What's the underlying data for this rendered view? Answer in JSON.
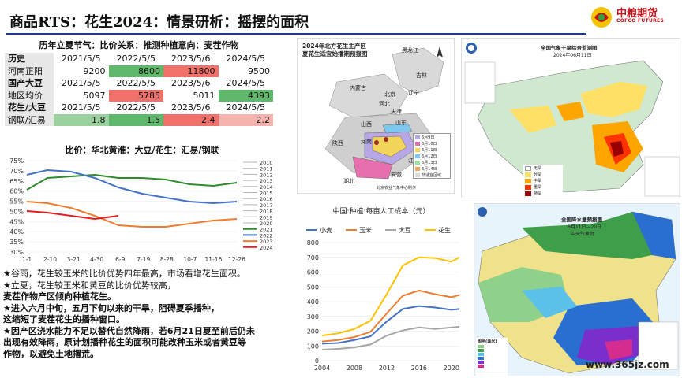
{
  "header": {
    "title": "商品RTS：花生2024：情景研析：摇摆的面积",
    "logo_cn": "中粮期货",
    "logo_en": "COFCO FUTURES"
  },
  "table": {
    "title": "历年立夏节气：比价关系：推测种植意向：麦茬作物",
    "groups": [
      {
        "header": "历史",
        "years": [
          "2021/5/5",
          "2022/5/5",
          "2023/5/6",
          "2024/5/5"
        ],
        "row_label": "河南正阳",
        "values": [
          "9200",
          "8600",
          "11800",
          "9500"
        ]
      },
      {
        "header": "国产大豆",
        "years": [
          "2021/5/5",
          "2022/5/5",
          "2023/5/6",
          "2024/5/5"
        ],
        "row_label": "地区均价",
        "values": [
          "5097",
          "5785",
          "5011",
          "4393"
        ]
      },
      {
        "header": "花生/大豆",
        "years": [
          "2021/5/5",
          "2022/5/5",
          "2023/5/6",
          "2024/5/5"
        ],
        "row_label": "钢联/汇易",
        "values": [
          "1.8",
          "1.5",
          "2.4",
          "2.2"
        ]
      }
    ]
  },
  "ratio_chart": {
    "title": "比价：华北黄淮：大豆/花生：汇易/钢联",
    "y_ticks": [
      "75%",
      "70%",
      "65%",
      "60%",
      "55%",
      "50%",
      "45%",
      "40%",
      "35%",
      "30%"
    ],
    "x_ticks": [
      "1-1",
      "2-10",
      "3-21",
      "4-30",
      "6-9",
      "7-19",
      "8-28",
      "10-7",
      "11-16",
      "12-26"
    ],
    "legend": [
      "2010",
      "2011",
      "2012",
      "2013",
      "2014",
      "2015",
      "2016",
      "2017",
      "2018",
      "2019",
      "2020",
      "2021",
      "2022",
      "2023",
      "2024"
    ]
  },
  "bullets": [
    "★谷雨，花生较玉米的比价优势四年最高，市场看增花生面积。",
    "★立夏，花生较玉米和黄豆的比价优势较高，",
    "麦茬作物产区倾向种植花生。",
    "★进入六月中旬，五月下旬以来的干旱，阻碍夏季播种，",
    "这缩短了麦茬花生的播种窗口。",
    "★因产区浇水能力不足以替代自然降雨，若6月21日夏至前后仍未",
    "出现有效降雨，原计划播种花生的面积可能改种玉米或者黄豆等",
    "作物，以避免土地撂荒。"
  ],
  "map1": {
    "title1": "2024年北方花生主产区",
    "title2": "夏花生适宜始播期预报图",
    "labels": [
      "黑龙江",
      "吉林",
      "辽宁",
      "内蒙古",
      "河北",
      "北京",
      "天津",
      "山西",
      "山东",
      "陕西",
      "河南",
      "江苏",
      "安徽",
      "湖北"
    ],
    "legend": [
      "6月9日",
      "6月10日",
      "6月11日",
      "6月12日",
      "6月13日",
      "6月14日",
      "非适宜区域"
    ],
    "source": "北京农业气象中心制作"
  },
  "cost_chart": {
    "title": "中国:种植:每亩人工成本（元）",
    "legend": [
      "小麦",
      "玉米",
      "大豆",
      "花生"
    ],
    "colors": [
      "#4472c4",
      "#ed7d31",
      "#a5a5a5",
      "#ffc000"
    ],
    "x": [
      2004,
      2006,
      2008,
      2010,
      2012,
      2014,
      2016,
      2018,
      2020,
      2021
    ],
    "series": [
      {
        "name": "小麦",
        "values": [
          115,
          120,
          140,
          165,
          265,
          350,
          370,
          360,
          345,
          350
        ]
      },
      {
        "name": "玉米",
        "values": [
          130,
          140,
          160,
          195,
          320,
          440,
          475,
          450,
          430,
          445
        ]
      },
      {
        "name": "大豆",
        "values": [
          75,
          80,
          90,
          110,
          170,
          205,
          225,
          215,
          225,
          230
        ]
      },
      {
        "name": "花生",
        "values": [
          170,
          185,
          215,
          270,
          450,
          645,
          700,
          695,
          670,
          700
        ]
      }
    ],
    "y_ticks": [
      "800",
      "700",
      "600",
      "500",
      "400",
      "300",
      "200",
      "100",
      "0"
    ],
    "x_ticks": [
      "2004",
      "2008",
      "2012",
      "2016",
      "2020"
    ]
  },
  "map2": {
    "title1": "全国气象干旱综合监测图",
    "title2": "2024年06月11日",
    "legend": [
      "无旱",
      "轻旱",
      "中旱",
      "重旱",
      "特旱"
    ],
    "legend_colors": [
      "#ffffff",
      "#ffe066",
      "#ffa500",
      "#ff3300",
      "#990000"
    ]
  },
  "map3": {
    "title1": "全国降水量预报图",
    "title2": "6月11日—20日",
    "title3": "中央气象台",
    "legend_title": "图例(毫米)"
  },
  "watermark": "www.365jz.com"
}
